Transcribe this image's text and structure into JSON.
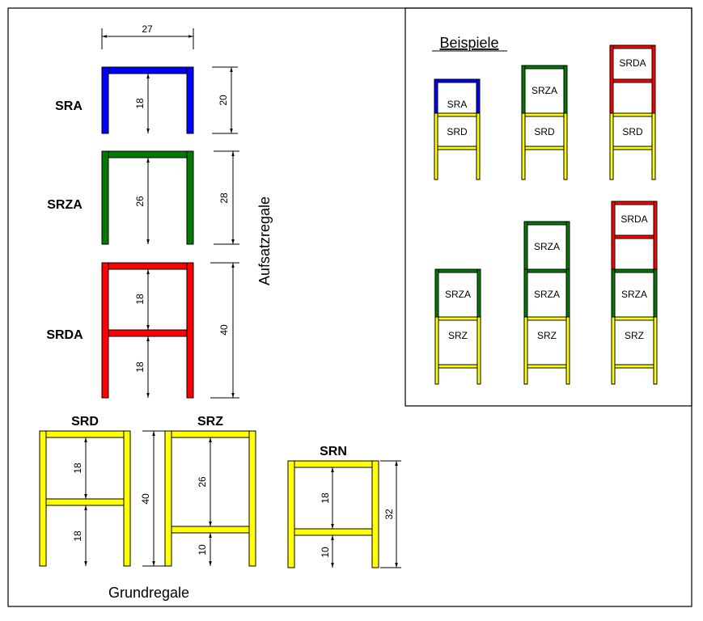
{
  "colors": {
    "SRA": "#0000ff",
    "SRZA": "#007a00",
    "SRDA": "#ff0000",
    "ground": "#ffff00"
  },
  "top_units": {
    "group_label": "Aufsatzregale",
    "width_dim": "27",
    "SRA": {
      "label": "SRA",
      "inner": [
        "18"
      ],
      "outer": "20"
    },
    "SRZA": {
      "label": "SRZA",
      "inner": [
        "26"
      ],
      "outer": "28"
    },
    "SRDA": {
      "label": "SRDA",
      "inner": [
        "18",
        "18"
      ],
      "outer": "40"
    }
  },
  "base_units": {
    "group_label": "Grundregale",
    "SRD": {
      "label": "SRD",
      "inner": [
        "18",
        "18"
      ]
    },
    "SRZ": {
      "label": "SRZ",
      "inner": [
        "26",
        "10"
      ],
      "outer": "40"
    },
    "SRN": {
      "label": "SRN",
      "inner": [
        "18",
        "10"
      ],
      "outer": "32"
    }
  },
  "examples": {
    "title": "Beispiele",
    "items": [
      [
        "SRA",
        "SRD"
      ],
      [
        "SRZA",
        "SRD"
      ],
      [
        "SRDA",
        "SRD"
      ],
      [
        "SRZA",
        "SRZ"
      ],
      [
        "SRZA",
        "SRZA",
        "SRZ"
      ],
      [
        "SRDA",
        "SRZA",
        "SRZ"
      ]
    ]
  }
}
